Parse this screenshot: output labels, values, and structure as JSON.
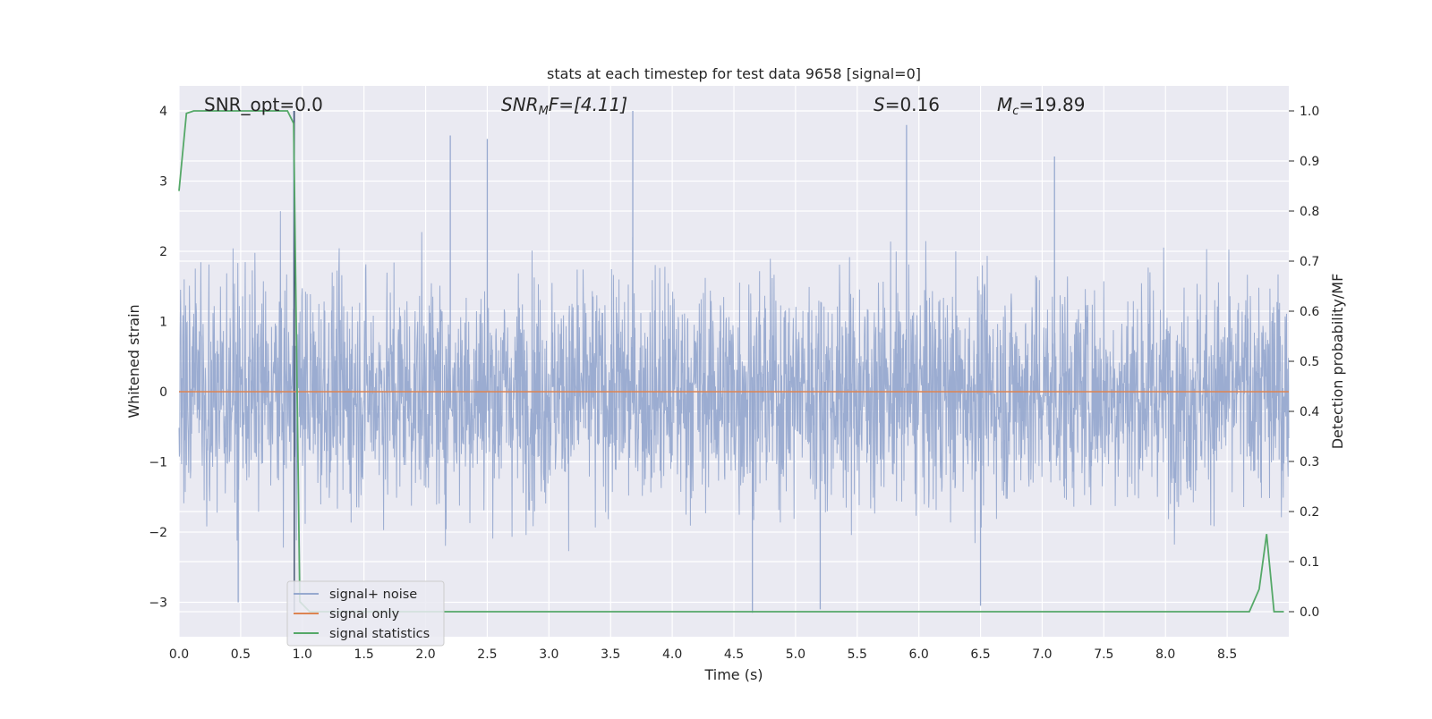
{
  "chart_data": {
    "type": "line",
    "title": "stats at each timestep for test data 9658 [signal=0]",
    "xlabel": "Time (s)",
    "ylabel_left": "Whitened strain",
    "ylabel_right": "Detection probability/MF",
    "xlim": [
      0.0,
      9.0
    ],
    "ylim_left": [
      -3.5,
      4.3
    ],
    "ylim_right": [
      -0.045,
      1.045
    ],
    "grid": true,
    "legend_position": "lower-left",
    "x_ticks": [
      "0.0",
      "0.5",
      "1.0",
      "1.5",
      "2.0",
      "2.5",
      "3.0",
      "3.5",
      "4.0",
      "4.5",
      "5.0",
      "5.5",
      "6.0",
      "6.5",
      "7.0",
      "7.5",
      "8.0",
      "8.5"
    ],
    "y_ticks_left": [
      "−3",
      "−2",
      "−1",
      "0",
      "1",
      "2",
      "3",
      "4"
    ],
    "y_ticks_right": [
      "0.0",
      "0.1",
      "0.2",
      "0.3",
      "0.4",
      "0.5",
      "0.6",
      "0.7",
      "0.8",
      "0.9",
      "1.0"
    ],
    "annotations": {
      "snr_opt": "SNR_opt=0.0",
      "snr_mf_name": "SNR",
      "snr_mf_sub": "M",
      "snr_mf_rest": "F=[4.11]",
      "s_name": "S",
      "s_rest": "=0.16",
      "mc_name": "M",
      "mc_sub": "c",
      "mc_rest": "=19.89"
    },
    "series": [
      {
        "name": "signal+ noise",
        "color": "#97a9cf",
        "axis": "left",
        "description_envelope": "noise band roughly between -2.5 and 2.5 with spikes",
        "notable_peaks": [
          {
            "x": 2.2,
            "y": 3.65
          },
          {
            "x": 2.5,
            "y": 3.6
          },
          {
            "x": 3.68,
            "y": 4.0
          },
          {
            "x": 5.9,
            "y": 3.8
          },
          {
            "x": 7.1,
            "y": 3.35
          },
          {
            "x": 0.93,
            "y": 4.0
          }
        ],
        "notable_troughs": [
          {
            "x": 4.65,
            "y": -3.15
          },
          {
            "x": 5.2,
            "y": -3.1
          },
          {
            "x": 0.48,
            "y": -3.0
          },
          {
            "x": 6.5,
            "y": -3.05
          }
        ]
      },
      {
        "name": "signal only",
        "color": "#dd8452",
        "axis": "left",
        "x": [
          0.0,
          9.0
        ],
        "y": [
          0.0,
          0.0
        ]
      },
      {
        "name": "signal statistics",
        "color": "#55a868",
        "axis": "right",
        "x": [
          0.0,
          0.06,
          0.12,
          0.2,
          0.5,
          0.88,
          0.93,
          0.98,
          1.06,
          1.2,
          3.0,
          6.0,
          8.0,
          8.68,
          8.76,
          8.82,
          8.88,
          8.96
        ],
        "y": [
          0.84,
          0.995,
          1.0,
          1.0,
          1.0,
          1.0,
          0.975,
          0.02,
          0.0,
          0.0,
          0.0,
          0.0,
          0.0,
          0.0,
          0.045,
          0.155,
          0.0,
          0.0
        ]
      }
    ]
  }
}
